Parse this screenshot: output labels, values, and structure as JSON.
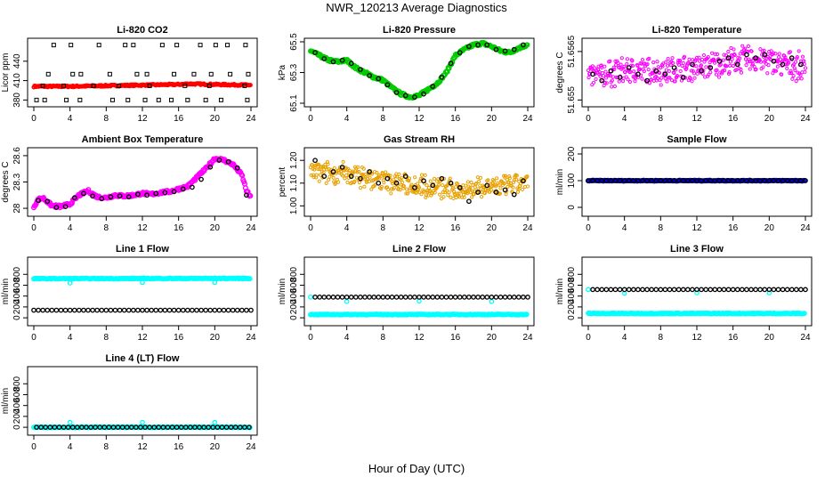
{
  "title": "NWR_120213  Average Diagnostics",
  "xlabel": "Hour of Day (UTC)",
  "colors": {
    "red": "#ff0000",
    "green": "#00cc00",
    "magenta": "#ff00ff",
    "orange": "#e8a000",
    "blue": "#0000cc",
    "cyan": "#00ffff",
    "black": "#000000"
  },
  "chart_data": [
    {
      "type": "scatter",
      "title": "Li-820 CO2",
      "ylabel": "Licor ppm",
      "xlim": [
        0,
        24
      ],
      "ylim": [
        375,
        470
      ],
      "xticks": [
        0,
        4,
        8,
        12,
        16,
        20,
        24
      ],
      "yticks": [
        380,
        410,
        440
      ],
      "series": [
        {
          "color": "red",
          "marker": "line",
          "x": [
            0,
            4,
            8,
            12,
            16,
            17,
            20,
            24
          ],
          "y": [
            401,
            401,
            402,
            403,
            404,
            405,
            404,
            403
          ]
        },
        {
          "color": "black",
          "marker": "square",
          "x": [
            0.3,
            3.6,
            8.7,
            12.3,
            15.2,
            19.0,
            23.6
          ],
          "y": [
            380,
            380,
            380,
            380,
            380,
            380,
            380
          ]
        },
        {
          "color": "black",
          "marker": "square",
          "x": [
            1.2,
            5.1,
            10.4,
            13.8,
            17.0,
            20.7
          ],
          "y": [
            380,
            380,
            380,
            380,
            380,
            380
          ]
        },
        {
          "color": "black",
          "marker": "square",
          "x": [
            2.2,
            4.1,
            7.2,
            10.1,
            11.0,
            14.2,
            15.8,
            18.4,
            20.1,
            21.4,
            23.4
          ],
          "y": [
            465,
            465,
            465,
            465,
            465,
            465,
            465,
            465,
            465,
            465,
            465
          ]
        },
        {
          "color": "black",
          "marker": "square",
          "x": [
            1.6,
            4.3,
            5.2,
            8.4,
            11.4,
            12.5,
            15.5,
            17.7,
            19.6,
            21.7,
            23.7
          ],
          "y": [
            420,
            420,
            420,
            420,
            420,
            420,
            420,
            420,
            420,
            420,
            420
          ]
        },
        {
          "color": "black",
          "marker": "square",
          "x": [
            1.0,
            3.3,
            6.6,
            9.4,
            12.8,
            16.7,
            19.4,
            23.3
          ],
          "y": [
            402,
            402,
            402,
            402,
            402,
            402,
            402,
            402
          ]
        }
      ]
    },
    {
      "type": "scatter",
      "title": "Li-820 Pressure",
      "ylabel": "kPa",
      "xlim": [
        0,
        24
      ],
      "ylim": [
        65.1,
        65.5
      ],
      "xticks": [
        0,
        4,
        8,
        12,
        16,
        20,
        24
      ],
      "yticks": [
        65.1,
        65.3,
        65.5
      ],
      "series": [
        {
          "color": "green",
          "marker": "line",
          "x": [
            0,
            1,
            2,
            3,
            4,
            5,
            6,
            7,
            8,
            9,
            10,
            11,
            12,
            13,
            14,
            15,
            16,
            17,
            18,
            19,
            20,
            21,
            22,
            23,
            24
          ],
          "y": [
            65.44,
            65.41,
            65.38,
            65.37,
            65.38,
            65.33,
            65.3,
            65.27,
            65.25,
            65.2,
            65.16,
            65.14,
            65.15,
            65.19,
            65.23,
            65.3,
            65.41,
            65.45,
            65.48,
            65.49,
            65.47,
            65.44,
            65.43,
            65.46,
            65.48
          ]
        },
        {
          "color": "black",
          "marker": "circle",
          "x": [
            0.5,
            1.5,
            2.5,
            3.5,
            4.5,
            5.5,
            6.5,
            7.5,
            8.5,
            9.5,
            10.5,
            11.5,
            12.5,
            13.5,
            14.5,
            15.5,
            16.5,
            17.5,
            18.5,
            19.5,
            20.5,
            21.5,
            22.5,
            23.5
          ],
          "y": [
            65.43,
            65.39,
            65.37,
            65.38,
            65.36,
            65.32,
            65.28,
            65.26,
            65.22,
            65.17,
            65.15,
            65.14,
            65.16,
            65.21,
            65.27,
            65.36,
            65.43,
            65.47,
            65.48,
            65.48,
            65.45,
            65.44,
            65.45,
            65.48
          ]
        }
      ]
    },
    {
      "type": "scatter",
      "title": "Li-820 Temperature",
      "ylabel": "degrees C",
      "xlim": [
        0,
        24
      ],
      "ylim": [
        51.6549,
        51.6568
      ],
      "xticks": [
        0,
        4,
        8,
        12,
        16,
        20,
        24
      ],
      "ytick_labels": [
        "51.655",
        "51.6565"
      ],
      "yticks": [
        51.655,
        51.6565
      ],
      "series": [
        {
          "color": "magenta",
          "marker": "cloud",
          "x": [
            0,
            4,
            8,
            12,
            16,
            18,
            20,
            24
          ],
          "y": [
            51.6557,
            51.6559,
            51.6559,
            51.656,
            51.6562,
            51.6563,
            51.6562,
            51.656
          ]
        },
        {
          "color": "black",
          "marker": "circle",
          "x": [
            0.5,
            1.5,
            2.5,
            3.5,
            4.5,
            5.5,
            6.5,
            7.5,
            8.5,
            9.5,
            10.5,
            11.5,
            12.5,
            13.5,
            14.5,
            15.5,
            16.5,
            17.5,
            18.5,
            19.5,
            20.5,
            21.5,
            22.5,
            23.5
          ],
          "y": [
            51.6558,
            51.6556,
            51.6559,
            51.6557,
            51.656,
            51.6558,
            51.6556,
            51.6559,
            51.6558,
            51.656,
            51.6557,
            51.6561,
            51.6559,
            51.656,
            51.6562,
            51.6563,
            51.6561,
            51.6564,
            51.6563,
            51.6564,
            51.6562,
            51.6561,
            51.6563,
            51.6561
          ]
        }
      ]
    },
    {
      "type": "scatter",
      "title": "Ambient Box Temperature",
      "ylabel": "degrees C",
      "xlim": [
        0,
        24
      ],
      "ylim": [
        27.95,
        28.65
      ],
      "xticks": [
        0,
        4,
        8,
        12,
        16,
        20,
        24
      ],
      "yticks": [
        28.0,
        28.3,
        28.6
      ],
      "series": [
        {
          "color": "magenta",
          "marker": "line",
          "x": [
            0,
            0.5,
            1,
            2,
            3,
            4,
            5,
            6,
            7,
            8,
            9,
            10,
            11,
            12,
            13,
            14,
            15,
            16,
            17,
            18,
            19,
            20,
            21,
            22,
            23,
            23.5,
            24
          ],
          "y": [
            28.02,
            28.1,
            28.12,
            28.03,
            28.02,
            28.05,
            28.15,
            28.2,
            28.13,
            28.12,
            28.15,
            28.14,
            28.15,
            28.17,
            28.16,
            28.18,
            28.19,
            28.22,
            28.25,
            28.35,
            28.45,
            28.57,
            28.55,
            28.5,
            28.38,
            28.2,
            28.12
          ]
        },
        {
          "color": "black",
          "marker": "circle",
          "x": [
            0.5,
            1.5,
            2.5,
            3.5,
            4.5,
            5.5,
            6.5,
            7.5,
            8.5,
            9.5,
            10.5,
            11.5,
            12.5,
            13.5,
            14.5,
            15.5,
            16.5,
            17.5,
            18.5,
            19.5,
            20.5,
            21.5,
            22.5,
            23.5
          ],
          "y": [
            28.09,
            28.08,
            28.01,
            28.02,
            28.12,
            28.17,
            28.14,
            28.11,
            28.13,
            28.14,
            28.13,
            28.16,
            28.15,
            28.17,
            28.18,
            28.19,
            28.22,
            28.24,
            28.33,
            28.47,
            28.55,
            28.53,
            28.46,
            28.15
          ]
        }
      ]
    },
    {
      "type": "scatter",
      "title": "Gas Stream RH",
      "ylabel": "percent",
      "xlim": [
        0,
        24
      ],
      "ylim": [
        0.97,
        1.24
      ],
      "xticks": [
        0,
        4,
        8,
        12,
        16,
        20,
        24
      ],
      "ytick_labels": [
        "1.00",
        "1.10",
        "1.20"
      ],
      "yticks": [
        1.0,
        1.1,
        1.2
      ],
      "series": [
        {
          "color": "orange",
          "marker": "cloud",
          "x": [
            0,
            4,
            8,
            12,
            16,
            20,
            24
          ],
          "y": [
            1.15,
            1.14,
            1.11,
            1.09,
            1.07,
            1.08,
            1.1
          ]
        },
        {
          "color": "black",
          "marker": "circle",
          "x": [
            0.5,
            1.5,
            2.5,
            3.5,
            4.5,
            5.5,
            6.5,
            7.5,
            8.5,
            9.5,
            10.5,
            11.5,
            12.5,
            13.5,
            14.5,
            15.5,
            16.5,
            17.5,
            18.5,
            19.5,
            20.5,
            21.5,
            22.5,
            23.5
          ],
          "y": [
            1.2,
            1.13,
            1.15,
            1.17,
            1.13,
            1.12,
            1.15,
            1.1,
            1.12,
            1.1,
            1.13,
            1.08,
            1.11,
            1.09,
            1.12,
            1.1,
            1.08,
            1.02,
            1.06,
            1.09,
            1.06,
            1.07,
            1.05,
            1.11
          ]
        }
      ]
    },
    {
      "type": "scatter",
      "title": "Sample Flow",
      "ylabel": "ml/min",
      "xlim": [
        0,
        24
      ],
      "ylim": [
        -20,
        210
      ],
      "xticks": [
        0,
        4,
        8,
        12,
        16,
        20,
        24
      ],
      "yticks": [
        0,
        100,
        200
      ],
      "series": [
        {
          "color": "blue",
          "marker": "dense",
          "x": [
            0,
            24
          ],
          "y": [
            100,
            100
          ]
        },
        {
          "color": "black",
          "marker": "circle",
          "x": [
            0,
            24
          ],
          "y": [
            100,
            100
          ]
        }
      ]
    },
    {
      "type": "scatter",
      "title": "Line 1 Flow",
      "ylabel": "ml/min",
      "xlim": [
        0,
        24
      ],
      "ylim": [
        -80,
        1050
      ],
      "xticks": [
        0,
        4,
        8,
        12,
        16,
        20,
        24
      ],
      "yticks": [
        0,
        200,
        400,
        600,
        800
      ],
      "series": [
        {
          "color": "cyan",
          "marker": "dense",
          "x": [
            0,
            24
          ],
          "y": [
            720,
            725
          ]
        },
        {
          "color": "cyan",
          "marker": "circle",
          "x": [
            4,
            12,
            20
          ],
          "y": [
            640,
            650,
            650
          ]
        },
        {
          "color": "black",
          "marker": "circle",
          "x": [
            0,
            24
          ],
          "y": [
            140,
            140
          ]
        }
      ]
    },
    {
      "type": "scatter",
      "title": "Line 2 Flow",
      "ylabel": "ml/min",
      "xlim": [
        0,
        24
      ],
      "ylim": [
        -80,
        1050
      ],
      "xticks": [
        0,
        4,
        8,
        12,
        16,
        20,
        24
      ],
      "yticks": [
        0,
        200,
        400,
        600,
        800
      ],
      "series": [
        {
          "color": "cyan",
          "marker": "dense",
          "x": [
            0,
            24
          ],
          "y": [
            60,
            60
          ]
        },
        {
          "color": "cyan",
          "marker": "circle",
          "x": [
            0,
            4,
            12,
            20
          ],
          "y": [
            380,
            300,
            310,
            300
          ]
        },
        {
          "color": "black",
          "marker": "circle",
          "x": [
            0.5,
            24
          ],
          "y": [
            380,
            380
          ]
        }
      ]
    },
    {
      "type": "scatter",
      "title": "Line 3 Flow",
      "ylabel": "ml/min",
      "xlim": [
        0,
        24
      ],
      "ylim": [
        -80,
        1050
      ],
      "xticks": [
        0,
        4,
        8,
        12,
        16,
        20,
        24
      ],
      "yticks": [
        0,
        200,
        400,
        600,
        800
      ],
      "series": [
        {
          "color": "cyan",
          "marker": "dense",
          "x": [
            0,
            24
          ],
          "y": [
            80,
            80
          ]
        },
        {
          "color": "cyan",
          "marker": "circle",
          "x": [
            0,
            4,
            12,
            20
          ],
          "y": [
            520,
            450,
            460,
            460
          ]
        },
        {
          "color": "black",
          "marker": "circle",
          "x": [
            0.5,
            24
          ],
          "y": [
            520,
            520
          ]
        }
      ]
    },
    {
      "type": "scatter",
      "title": "Line 4 (LT) Flow",
      "ylabel": "ml/min",
      "xlim": [
        0,
        24
      ],
      "ylim": [
        -80,
        1050
      ],
      "xticks": [
        0,
        4,
        8,
        12,
        16,
        20,
        24
      ],
      "yticks": [
        0,
        200,
        400,
        600,
        800
      ],
      "series": [
        {
          "color": "cyan",
          "marker": "dense",
          "x": [
            0,
            24
          ],
          "y": [
            0,
            0
          ]
        },
        {
          "color": "cyan",
          "marker": "circle",
          "x": [
            4,
            12,
            20
          ],
          "y": [
            90,
            90,
            90
          ]
        },
        {
          "color": "black",
          "marker": "circle",
          "x": [
            0.3,
            24
          ],
          "y": [
            0,
            0
          ]
        }
      ]
    }
  ]
}
